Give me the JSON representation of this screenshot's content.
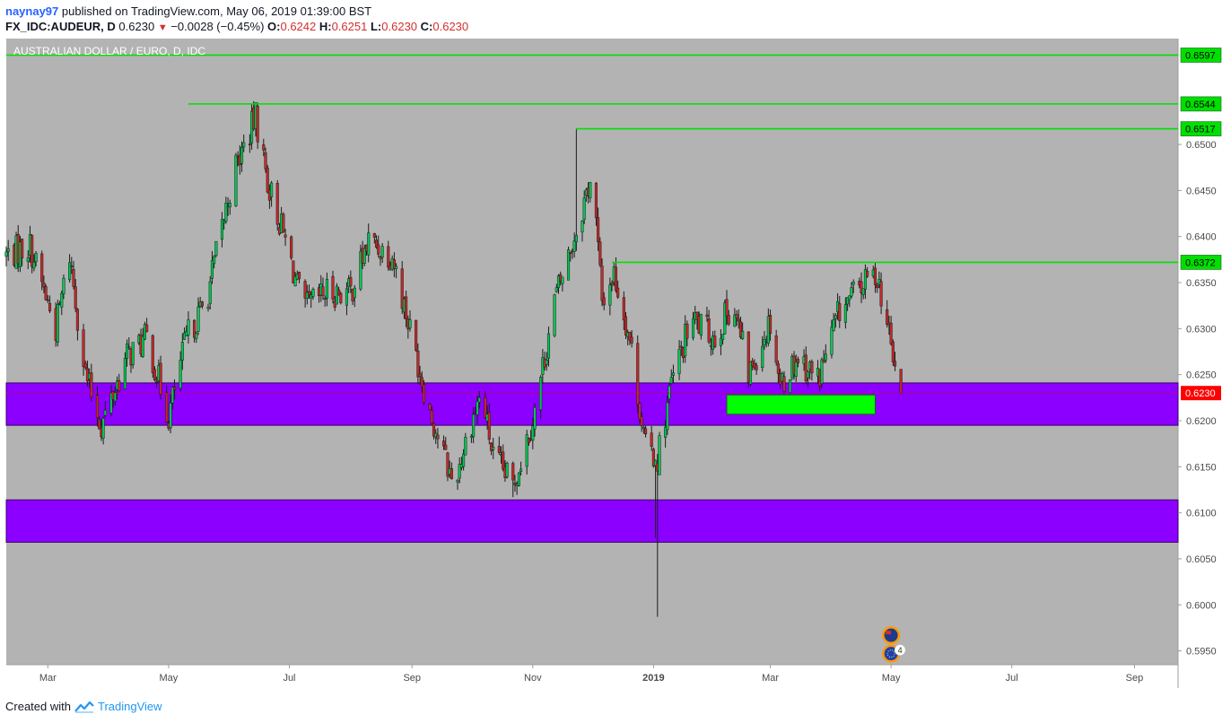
{
  "header": {
    "author": "naynay97",
    "published_text": "published on TradingView.com, May 06, 2019 01:39:00 BST",
    "symbol": "FX_IDC:AUDEUR, D",
    "last": "0.6230",
    "change": "−0.0028 (−0.45%)",
    "open_label": "O:",
    "open": "0.6242",
    "high_label": "H:",
    "high": "0.6251",
    "low_label": "L:",
    "low": "0.6230",
    "close_label": "C:",
    "close": "0.6230"
  },
  "footer": {
    "created_with": "Created with",
    "brand": "TradingView"
  },
  "colors": {
    "chart_bg": "#b3b3b3",
    "zone": "#8b00ff",
    "green_line": "#00e000",
    "green_box": "#00ff00",
    "up": "#00c853",
    "down": "#c62828",
    "current": "#ff0000"
  },
  "chart_data": {
    "type": "candlestick",
    "title": "AUSTRALIAN DOLLAR / EURO, D, IDC",
    "y_range": [
      0.5935,
      0.6615
    ],
    "x_range": [
      "2018-02-08",
      "2019-09-23"
    ],
    "x_ticks": [
      {
        "label": "Mar",
        "date": "2018-03-01"
      },
      {
        "label": "May",
        "date": "2018-05-01"
      },
      {
        "label": "Jul",
        "date": "2018-07-01"
      },
      {
        "label": "Sep",
        "date": "2018-09-01"
      },
      {
        "label": "Nov",
        "date": "2018-11-01"
      },
      {
        "label": "2019",
        "date": "2019-01-01",
        "bold": true
      },
      {
        "label": "Mar",
        "date": "2019-03-01"
      },
      {
        "label": "May",
        "date": "2019-05-01"
      },
      {
        "label": "Jul",
        "date": "2019-07-01"
      },
      {
        "label": "Sep",
        "date": "2019-09-01"
      }
    ],
    "y_ticks": [
      "0.6500",
      "0.6450",
      "0.6400",
      "0.6350",
      "0.6300",
      "0.6250",
      "0.6200",
      "0.6150",
      "0.6100",
      "0.6050",
      "0.6000",
      "0.5950"
    ],
    "horizontal_lines": [
      {
        "price": 0.6597,
        "label": "0.6597",
        "from": "2018-02-08"
      },
      {
        "price": 0.6544,
        "label": "0.6544",
        "from": "2018-05-11"
      },
      {
        "price": 0.6517,
        "label": "0.6517",
        "from": "2018-11-23"
      },
      {
        "price": 0.6372,
        "label": "0.6372",
        "from": "2018-12-11"
      }
    ],
    "zones": [
      {
        "high": 0.6241,
        "low": 0.6195
      },
      {
        "high": 0.6114,
        "low": 0.6068
      }
    ],
    "box": {
      "start": "2019-02-07",
      "end": "2019-04-23",
      "high": 0.6228,
      "low": 0.6207
    },
    "current_price": {
      "price": 0.623,
      "label": "0.6230"
    },
    "anchors": [
      [
        "2018-02-08",
        0.638
      ],
      [
        "2018-02-20",
        0.639
      ],
      [
        "2018-03-05",
        0.63
      ],
      [
        "2018-03-12",
        0.638
      ],
      [
        "2018-03-20",
        0.625
      ],
      [
        "2018-03-28",
        0.6195
      ],
      [
        "2018-04-10",
        0.627
      ],
      [
        "2018-04-20",
        0.629
      ],
      [
        "2018-05-01",
        0.6205
      ],
      [
        "2018-05-10",
        0.629
      ],
      [
        "2018-05-20",
        0.633
      ],
      [
        "2018-06-03",
        0.647
      ],
      [
        "2018-06-14",
        0.653
      ],
      [
        "2018-06-20",
        0.646
      ],
      [
        "2018-07-01",
        0.638
      ],
      [
        "2018-07-08",
        0.632
      ],
      [
        "2018-07-20",
        0.634
      ],
      [
        "2018-08-01",
        0.634
      ],
      [
        "2018-08-10",
        0.6395
      ],
      [
        "2018-08-22",
        0.638
      ],
      [
        "2018-09-01",
        0.629
      ],
      [
        "2018-09-10",
        0.621
      ],
      [
        "2018-09-22",
        0.613
      ],
      [
        "2018-10-01",
        0.62
      ],
      [
        "2018-10-06",
        0.623
      ],
      [
        "2018-10-12",
        0.616
      ],
      [
        "2018-10-22",
        0.613
      ],
      [
        "2018-11-02",
        0.621
      ],
      [
        "2018-11-12",
        0.633
      ],
      [
        "2018-11-22",
        0.64
      ],
      [
        "2018-12-01",
        0.647
      ],
      [
        "2018-12-06",
        0.633
      ],
      [
        "2018-12-12",
        0.636
      ],
      [
        "2018-12-20",
        0.629
      ],
      [
        "2018-12-28",
        0.617
      ],
      [
        "2019-01-03",
        0.616
      ],
      [
        "2019-01-10",
        0.624
      ],
      [
        "2019-01-20",
        0.631
      ],
      [
        "2019-02-01",
        0.629
      ],
      [
        "2019-02-10",
        0.633
      ],
      [
        "2019-02-18",
        0.625
      ],
      [
        "2019-03-01",
        0.631
      ],
      [
        "2019-03-06",
        0.624
      ],
      [
        "2019-03-15",
        0.627
      ],
      [
        "2019-03-25",
        0.6245
      ],
      [
        "2019-04-05",
        0.632
      ],
      [
        "2019-04-18",
        0.635
      ],
      [
        "2019-04-24",
        0.636
      ],
      [
        "2019-05-01",
        0.628
      ],
      [
        "2019-05-06",
        0.623
      ]
    ],
    "extremes": [
      {
        "date": "2018-06-12",
        "high": 0.6544
      },
      {
        "date": "2018-06-14",
        "high": 0.6538
      },
      {
        "date": "2018-11-23",
        "high": 0.6517
      },
      {
        "date": "2019-01-03",
        "low": 0.5987
      },
      {
        "date": "2019-01-02",
        "low": 0.6073
      },
      {
        "date": "2019-04-23",
        "high": 0.6372
      },
      {
        "date": "2018-03-28",
        "low": 0.6178
      },
      {
        "date": "2018-10-22",
        "low": 0.6117
      }
    ],
    "event_icons": [
      {
        "date": "2019-05-01",
        "price": 0.5967,
        "kind": "flag-au"
      },
      {
        "date": "2019-05-01",
        "price": 0.5947,
        "kind": "flag-eu",
        "badge": "4"
      }
    ]
  }
}
